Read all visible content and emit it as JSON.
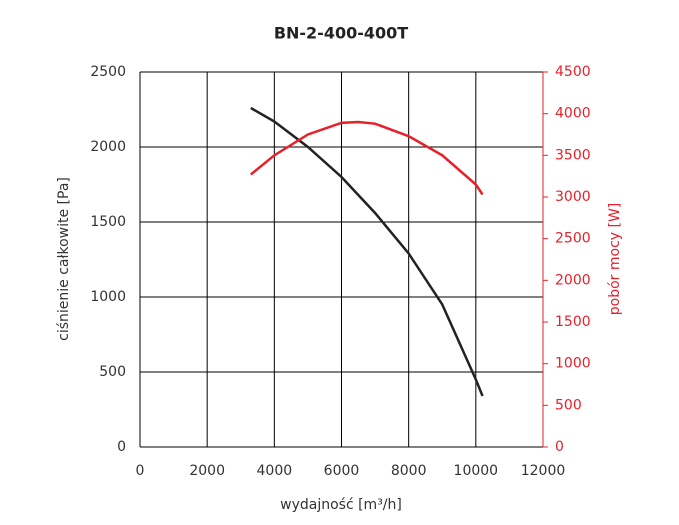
{
  "chart_data": {
    "type": "line",
    "title": "BN-2-400-400T",
    "x_label": "wydajność [m³/h]",
    "y_label": "ciśnienie całkowite [Pa]",
    "y2_label": "pobór mocy [W]",
    "xlim": [
      0,
      12000
    ],
    "xticks": [
      0,
      2000,
      4000,
      6000,
      8000,
      10000,
      12000
    ],
    "ylim": [
      0,
      2500
    ],
    "yticks": [
      0,
      500,
      1000,
      1500,
      2000,
      2500
    ],
    "y2lim": [
      0,
      4500
    ],
    "y2ticks": [
      0,
      500,
      1000,
      1500,
      2000,
      2500,
      3000,
      3500,
      4000,
      4500
    ],
    "grid": true,
    "series": [
      {
        "name": "ciśnienie całkowite",
        "color": "#222222",
        "x": [
          3300,
          4000,
          5000,
          6000,
          7000,
          8000,
          9000,
          10000,
          10200
        ],
        "values": [
          2260,
          2170,
          2000,
          1800,
          1560,
          1290,
          950,
          450,
          340
        ]
      },
      {
        "name": "pobór mocy",
        "color": "#e8202a",
        "axis": "y2",
        "x": [
          3300,
          4000,
          5000,
          6000,
          6500,
          7000,
          8000,
          9000,
          10000,
          10200
        ],
        "values": [
          3270,
          3500,
          3750,
          3890,
          3900,
          3880,
          3730,
          3500,
          3150,
          3030
        ]
      }
    ]
  }
}
